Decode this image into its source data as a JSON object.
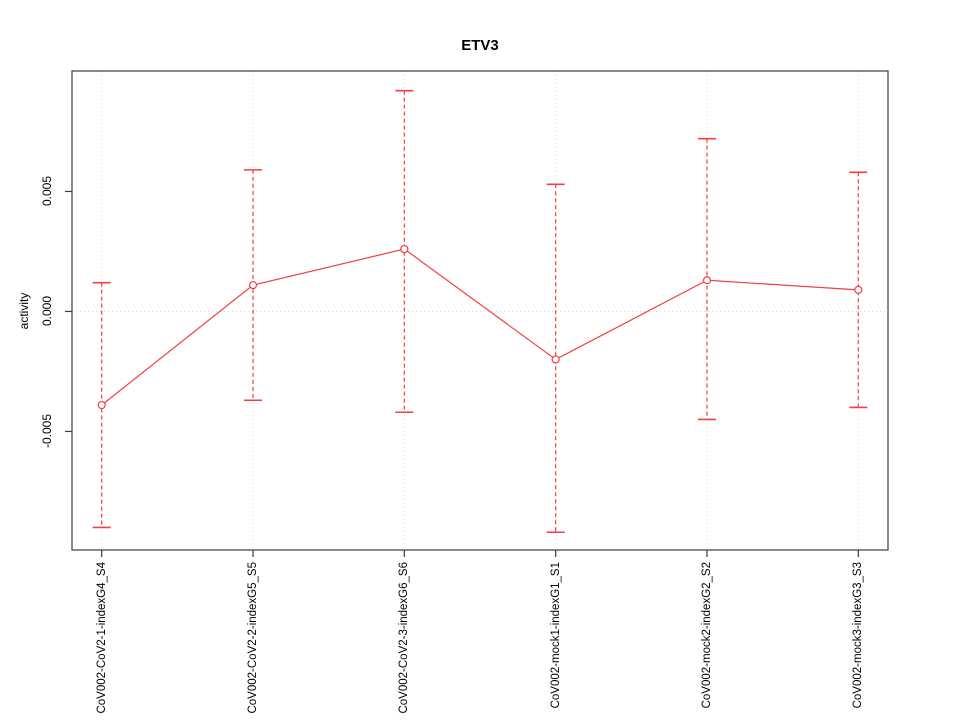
{
  "chart_data": {
    "type": "line",
    "title": "ETV3",
    "xlabel": "",
    "ylabel": "activity",
    "legend": "none",
    "marker": "open-circle",
    "grid": "dotted vertical line at each category; dotted horizontal line at y=0",
    "categories": [
      "CoV002-CoV2-1-indexG4_S4",
      "CoV002-CoV2-2-indexG5_S5",
      "CoV002-CoV2-3-indexG6_S6",
      "CoV002-mock1-indexG1_S1",
      "CoV002-mock2-indexG2_S2",
      "CoV002-mock3-indexG3_S3"
    ],
    "series": [
      {
        "name": "activity",
        "values": [
          -0.0039,
          0.0011,
          0.0026,
          -0.002,
          0.0013,
          0.0009
        ],
        "error_low": [
          -0.009,
          -0.0037,
          -0.0042,
          -0.0092,
          -0.0045,
          -0.004
        ],
        "error_high": [
          0.0012,
          0.0059,
          0.0092,
          0.0053,
          0.0072,
          0.0058
        ]
      }
    ],
    "yticks": {
      "values": [
        -0.005,
        0,
        0.005
      ],
      "labels": [
        "-0.005",
        "0.000",
        "0.005"
      ]
    },
    "ylim": [
      -0.00994,
      0.01002
    ],
    "colors": {
      "series": "#f04040",
      "grid": "#d9d9d9",
      "box": "#3c3c3c",
      "text": "#000000",
      "background": "#ffffff"
    }
  }
}
